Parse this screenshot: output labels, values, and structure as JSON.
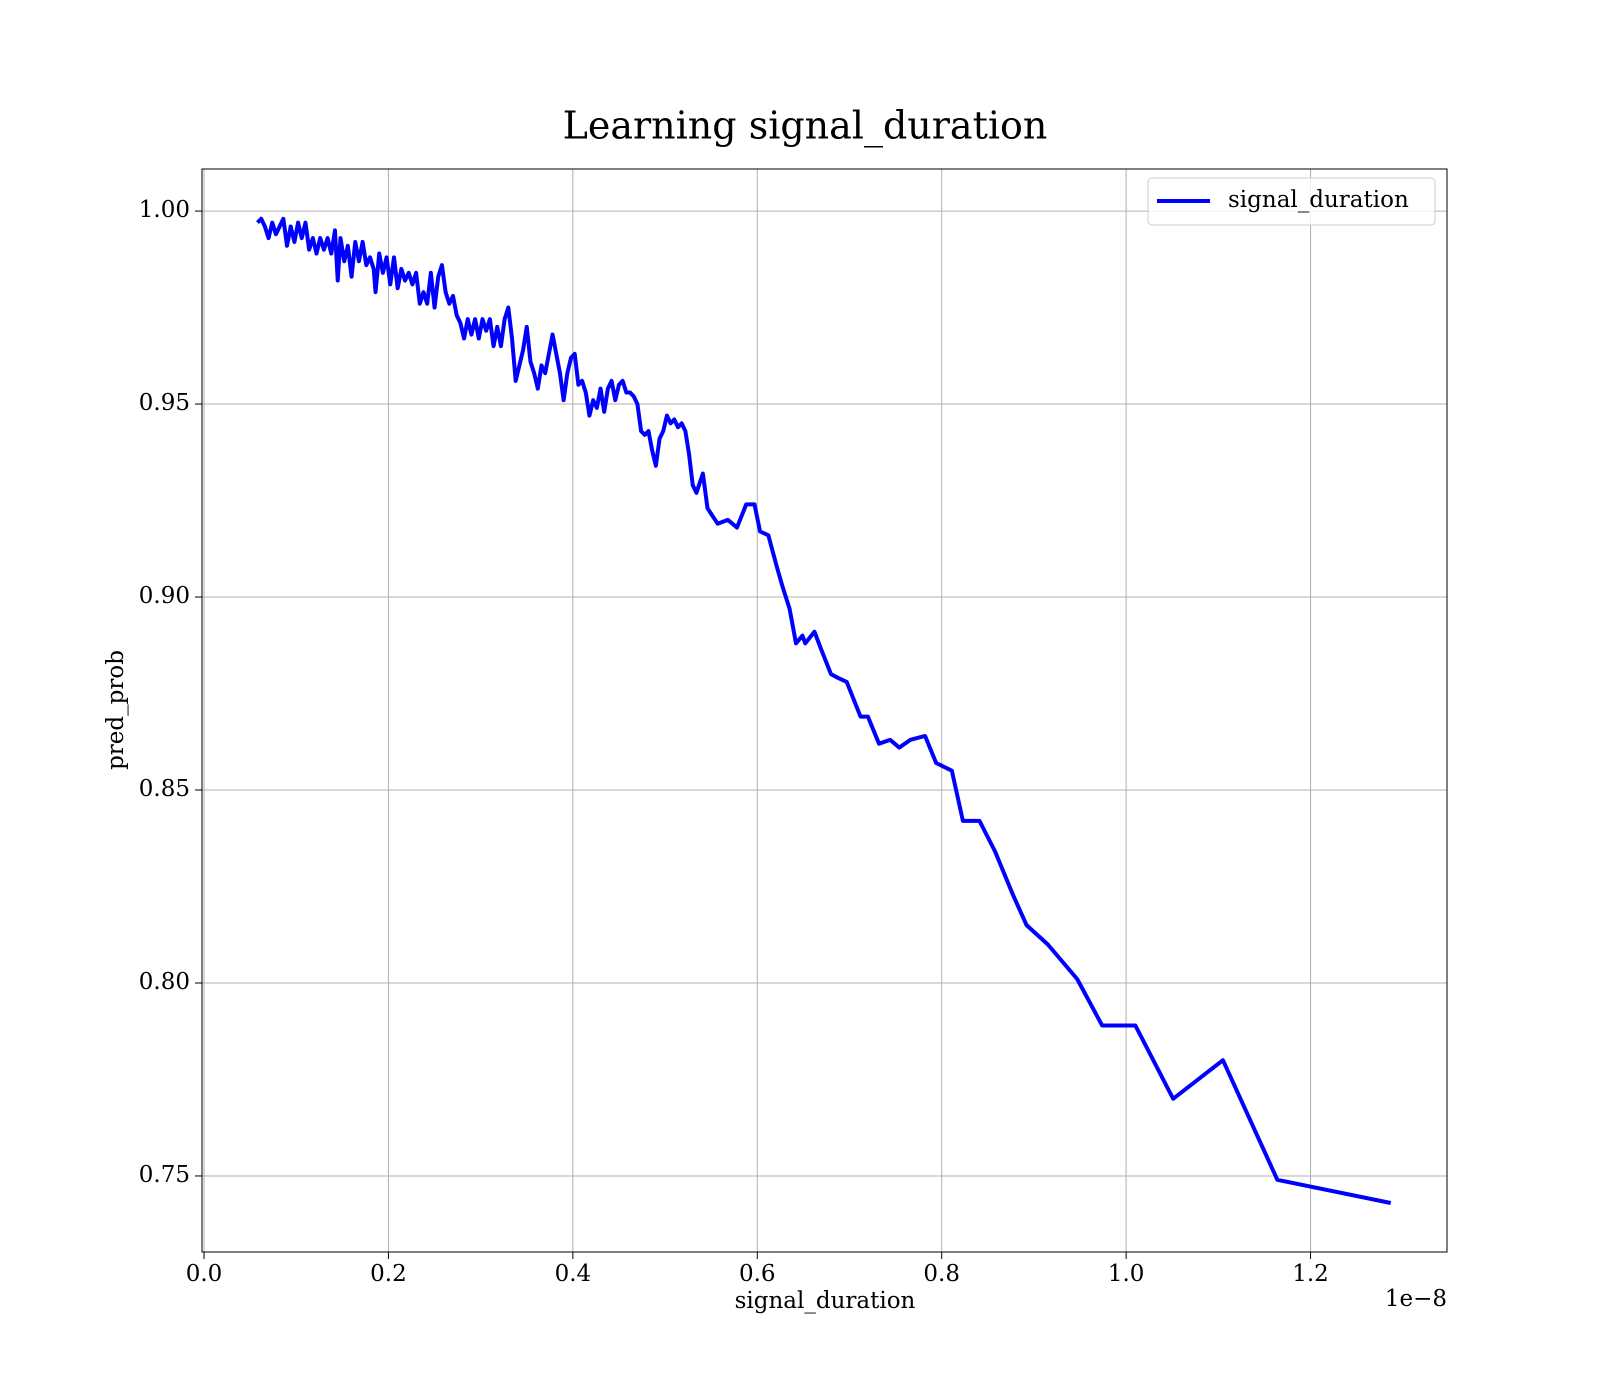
{
  "chart_data": {
    "type": "line",
    "title": "Learning signal_duration",
    "x_label": "signal_duration",
    "y_label": "pred_prob",
    "x_offset_label": "1e−8",
    "x": [
      0.058,
      0.062,
      0.066,
      0.07,
      0.074,
      0.078,
      0.082,
      0.086,
      0.09,
      0.094,
      0.098,
      0.102,
      0.106,
      0.11,
      0.114,
      0.118,
      0.122,
      0.126,
      0.13,
      0.134,
      0.138,
      0.142,
      0.145,
      0.148,
      0.152,
      0.156,
      0.16,
      0.164,
      0.168,
      0.172,
      0.176,
      0.18,
      0.184,
      0.186,
      0.19,
      0.194,
      0.198,
      0.202,
      0.206,
      0.21,
      0.214,
      0.218,
      0.222,
      0.226,
      0.23,
      0.234,
      0.238,
      0.242,
      0.246,
      0.25,
      0.254,
      0.258,
      0.262,
      0.266,
      0.27,
      0.274,
      0.278,
      0.282,
      0.286,
      0.29,
      0.294,
      0.298,
      0.302,
      0.306,
      0.31,
      0.314,
      0.318,
      0.322,
      0.326,
      0.33,
      0.334,
      0.338,
      0.342,
      0.346,
      0.35,
      0.354,
      0.358,
      0.362,
      0.366,
      0.37,
      0.374,
      0.378,
      0.382,
      0.386,
      0.39,
      0.394,
      0.398,
      0.402,
      0.406,
      0.41,
      0.414,
      0.418,
      0.422,
      0.426,
      0.43,
      0.434,
      0.438,
      0.442,
      0.446,
      0.45,
      0.454,
      0.458,
      0.462,
      0.466,
      0.47,
      0.474,
      0.478,
      0.482,
      0.486,
      0.49,
      0.494,
      0.498,
      0.502,
      0.506,
      0.51,
      0.514,
      0.518,
      0.522,
      0.526,
      0.53,
      0.534,
      0.541,
      0.546,
      0.557,
      0.568,
      0.578,
      0.588,
      0.597,
      0.603,
      0.612,
      0.621,
      0.627,
      0.635,
      0.642,
      0.649,
      0.652,
      0.662,
      0.67,
      0.68,
      0.688,
      0.697,
      0.712,
      0.72,
      0.732,
      0.744,
      0.754,
      0.766,
      0.782,
      0.794,
      0.811,
      0.823,
      0.841,
      0.858,
      0.877,
      0.892,
      0.915,
      0.947,
      0.974,
      1.01,
      1.051,
      1.105,
      1.164,
      1.287
    ],
    "series": [
      {
        "name": "signal_duration",
        "color": "#0000ff",
        "values": [
          0.997,
          0.998,
          0.996,
          0.993,
          0.997,
          0.994,
          0.996,
          0.998,
          0.991,
          0.996,
          0.992,
          0.997,
          0.993,
          0.997,
          0.99,
          0.993,
          0.989,
          0.993,
          0.99,
          0.993,
          0.989,
          0.995,
          0.982,
          0.993,
          0.987,
          0.991,
          0.983,
          0.992,
          0.987,
          0.992,
          0.986,
          0.988,
          0.985,
          0.979,
          0.989,
          0.984,
          0.988,
          0.981,
          0.988,
          0.98,
          0.985,
          0.982,
          0.984,
          0.981,
          0.984,
          0.976,
          0.979,
          0.976,
          0.984,
          0.975,
          0.983,
          0.986,
          0.979,
          0.976,
          0.978,
          0.973,
          0.971,
          0.967,
          0.972,
          0.968,
          0.972,
          0.967,
          0.972,
          0.969,
          0.972,
          0.965,
          0.97,
          0.965,
          0.972,
          0.975,
          0.967,
          0.956,
          0.96,
          0.964,
          0.97,
          0.961,
          0.958,
          0.954,
          0.96,
          0.958,
          0.963,
          0.968,
          0.963,
          0.958,
          0.951,
          0.958,
          0.962,
          0.963,
          0.955,
          0.956,
          0.953,
          0.947,
          0.951,
          0.949,
          0.954,
          0.948,
          0.954,
          0.956,
          0.951,
          0.955,
          0.956,
          0.953,
          0.953,
          0.952,
          0.95,
          0.943,
          0.942,
          0.943,
          0.938,
          0.934,
          0.941,
          0.943,
          0.947,
          0.945,
          0.946,
          0.944,
          0.945,
          0.943,
          0.937,
          0.929,
          0.927,
          0.932,
          0.923,
          0.919,
          0.92,
          0.918,
          0.924,
          0.924,
          0.917,
          0.916,
          0.908,
          0.903,
          0.897,
          0.888,
          0.89,
          0.888,
          0.891,
          0.886,
          0.88,
          0.879,
          0.878,
          0.869,
          0.869,
          0.862,
          0.863,
          0.861,
          0.863,
          0.864,
          0.857,
          0.855,
          0.842,
          0.842,
          0.834,
          0.823,
          0.815,
          0.81,
          0.801,
          0.789,
          0.789,
          0.77,
          0.78,
          0.749,
          0.743
        ]
      }
    ],
    "xlim": [
      -0.0022,
      1.348
    ],
    "ylim": [
      0.7303,
      1.0109
    ],
    "xticks": [
      {
        "value": 0,
        "label": "0.0"
      },
      0.2,
      0.4,
      0.6,
      0.8,
      {
        "value": 1,
        "label": "1.0"
      },
      1.2
    ],
    "yticks": [
      0.75,
      {
        "value": 0.8,
        "label": "0.80"
      },
      0.85,
      {
        "value": 0.9,
        "label": "0.90"
      },
      0.95,
      {
        "value": 1,
        "label": "1.00"
      }
    ],
    "grid": true,
    "legend": "upper right"
  }
}
